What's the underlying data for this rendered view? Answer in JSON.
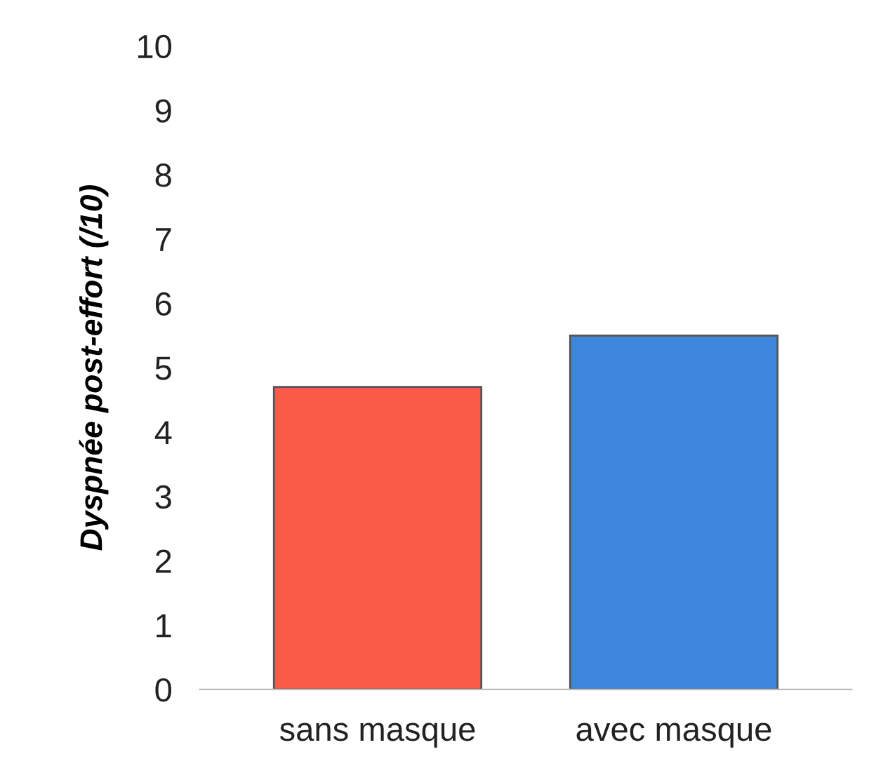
{
  "chart_data": {
    "type": "bar",
    "ylabel": "Dyspnée post-effort (/10)",
    "categories": [
      "sans masque",
      "avec masque"
    ],
    "values": [
      4.7,
      5.5
    ],
    "colors": [
      "#fa5a48",
      "#3c87dc"
    ],
    "ylim": [
      0,
      10
    ],
    "yticks": [
      0,
      1,
      2,
      3,
      4,
      5,
      6,
      7,
      8,
      9,
      10
    ],
    "grid": false,
    "legend": false
  }
}
